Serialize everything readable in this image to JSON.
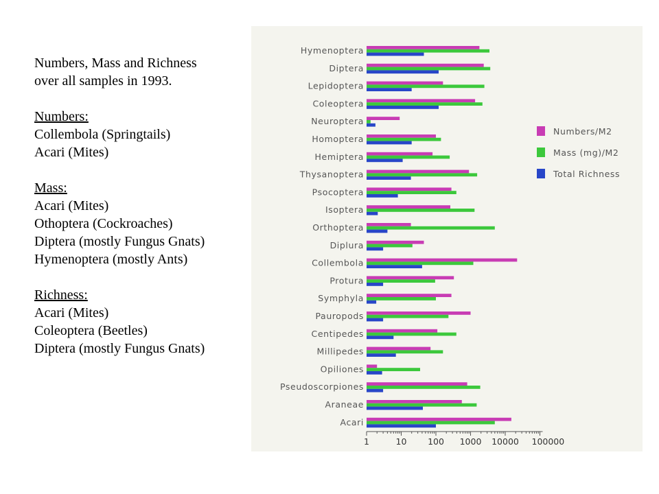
{
  "notes": {
    "title_line1": "Numbers, Mass and Richness",
    "title_line2": "over all samples in 1993.",
    "numbers_heading": "Numbers:",
    "numbers_items": [
      "Collembola (Springtails)",
      "Acari (Mites)"
    ],
    "mass_heading": "Mass:",
    "mass_items": [
      "Acari (Mites)",
      "Othoptera (Cockroaches)",
      "Diptera (mostly Fungus Gnats)",
      "Hymenoptera (mostly Ants)"
    ],
    "richness_heading": "Richness:",
    "richness_items": [
      "Acari (Mites)",
      "Coleoptera (Beetles)",
      "Diptera (mostly Fungus Gnats)"
    ]
  },
  "chart_data": {
    "type": "bar",
    "orientation": "horizontal",
    "x_scale": "log",
    "xlim": [
      1,
      100000
    ],
    "x_ticks": [
      "1",
      "10",
      "100",
      "1000",
      "10000",
      "100000"
    ],
    "grid": false,
    "legend_position": "right",
    "categories": [
      "Hymenoptera",
      "Diptera",
      "Lepidoptera",
      "Coleoptera",
      "Neuroptera",
      "Homoptera",
      "Hemiptera",
      "Thysanoptera",
      "Psocoptera",
      "Isoptera",
      "Orthoptera",
      "Diplura",
      "Collembola",
      "Protura",
      "Symphyla",
      "Pauropods",
      "Centipedes",
      "Millipedes",
      "Opiliones",
      "Pseudoscorpiones",
      "Araneae",
      "Acari"
    ],
    "series": [
      {
        "name": "Numbers/M2",
        "color": "#c83cb4",
        "values": [
          1800,
          2400,
          160,
          1350,
          9,
          100,
          80,
          900,
          280,
          260,
          19,
          45,
          22000,
          330,
          280,
          1000,
          110,
          70,
          2,
          800,
          560,
          15000
        ]
      },
      {
        "name": "Mass (mg)/M2",
        "color": "#3cc83c",
        "values": [
          3500,
          3700,
          2500,
          2200,
          1.3,
          140,
          250,
          1550,
          390,
          1300,
          5000,
          21,
          1200,
          95,
          100,
          230,
          390,
          160,
          35,
          1900,
          1500,
          5000
        ]
      },
      {
        "name": "Total Richness",
        "color": "#2846c8",
        "values": [
          45,
          120,
          20,
          120,
          1.8,
          20,
          11,
          19,
          8,
          2.1,
          4,
          3,
          40,
          3,
          1.9,
          3,
          6,
          7,
          2.8,
          3,
          42,
          100
        ]
      }
    ]
  }
}
